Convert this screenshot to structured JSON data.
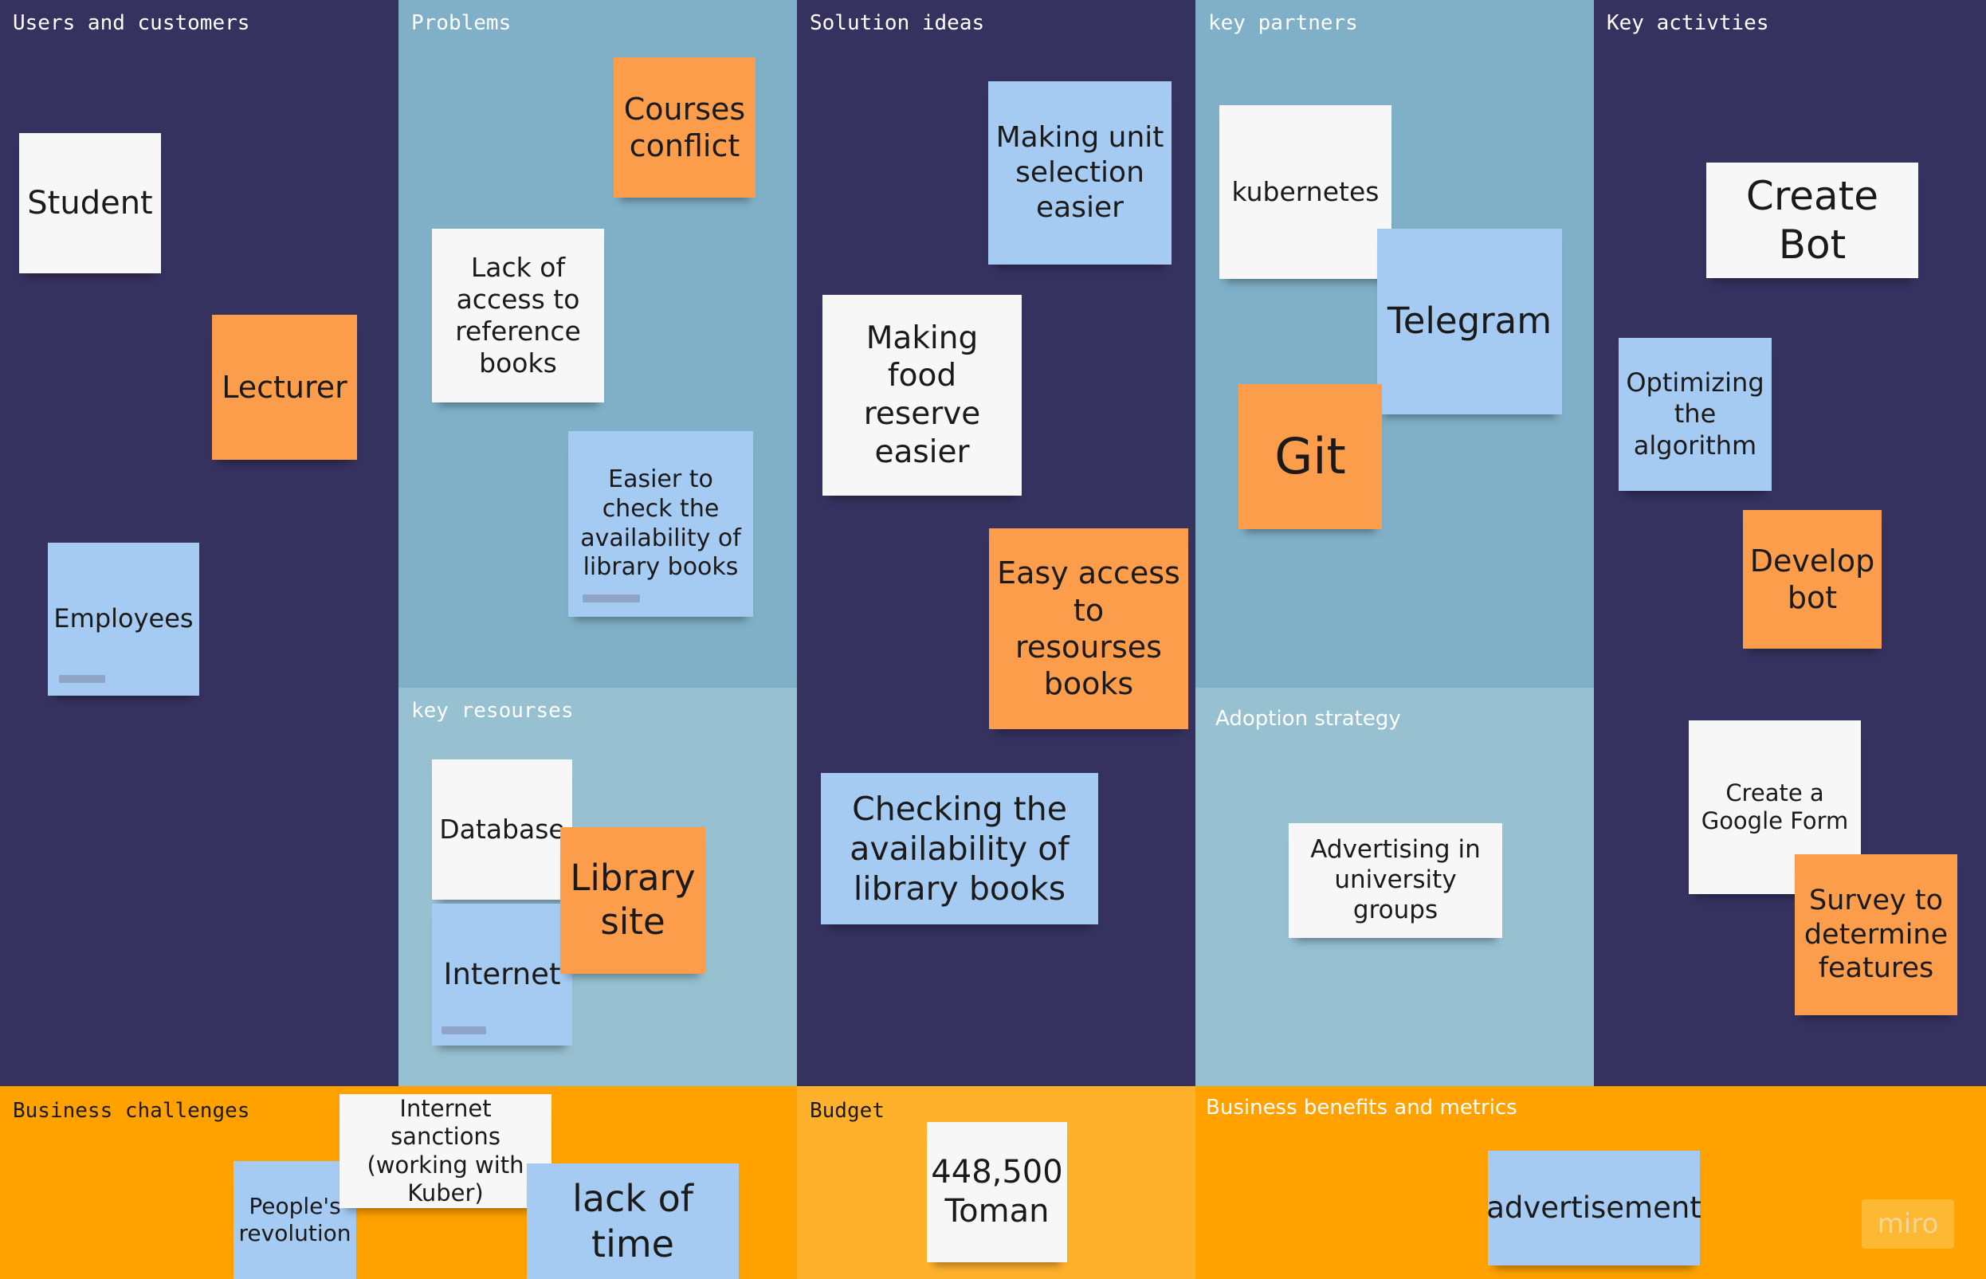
{
  "panels": {
    "users": "Users and customers",
    "problems": "Problems",
    "solutions": "Solution ideas",
    "partners": "key partners",
    "activities": "Key activties",
    "resources": "key resourses",
    "adoption": "Adoption strategy",
    "challenges": "Business challenges",
    "budget": "Budget",
    "benefits": "Business benefits and metrics"
  },
  "notes": {
    "student": "Student",
    "lecturer": "Lecturer",
    "employees": "Employees",
    "courses_conflict": "Courses conflict",
    "lack_access": "Lack of access to reference books",
    "easier_check": "Easier to check the availability of library books",
    "unit_selection": "Making unit selection easier",
    "food_reserve": "Making food reserve easier",
    "easy_access": "Easy access to resourses books",
    "checking": "Checking the availability of library books",
    "kubernetes": "kubernetes",
    "telegram": "Telegram",
    "git": "Git",
    "create_bot": "Create Bot",
    "optimizing": "Optimizing the algorithm",
    "develop_bot": "Develop bot",
    "google_form": "Create a Google Form",
    "survey": "Survey to determine features",
    "database": "Database",
    "library_site": "Library site",
    "internet": "Internet",
    "advertising": "Advertising in university groups",
    "sanctions": "Internet sanctions (working with Kuber)",
    "revolution": "People's revolution",
    "lack_time": "lack of time",
    "budget_value": "448,500 Toman",
    "advertisement": "advertisement"
  },
  "logo": "miro",
  "colors": {
    "dark_panel": "#363260",
    "mid_panel": "#7fb0c7",
    "light_panel": "#97c0d1",
    "orange_panel": "#ffa200",
    "budget_panel": "#ffb12b",
    "note_white": "#f7f7f7",
    "note_orange": "#fb9d4a",
    "note_blue": "#a6cbf2"
  }
}
